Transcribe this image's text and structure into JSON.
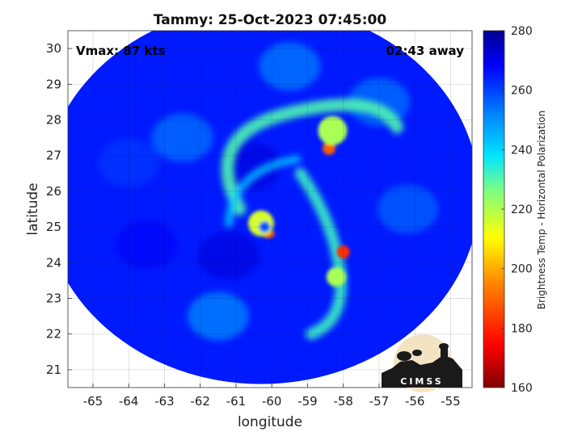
{
  "chart_data": {
    "type": "heatmap",
    "title": "Tammy: 25-Oct-2023 07:45:00",
    "xlabel": "longitude",
    "ylabel": "latitude",
    "xlim": [
      -65.7,
      -54.4
    ],
    "ylim": [
      20.5,
      30.5
    ],
    "x_ticks": [
      -65,
      -64,
      -63,
      -62,
      -61,
      -60,
      -59,
      -58,
      -57,
      -56,
      -55
    ],
    "y_ticks": [
      21,
      22,
      23,
      24,
      25,
      26,
      27,
      28,
      29,
      30
    ],
    "grid": true,
    "annotations": {
      "vmax": "Vmax: 87 kts",
      "time_away": "02:43 away"
    },
    "colorbar": {
      "label": "Brightness Temp - Horizontal Polarization",
      "range": [
        160,
        280
      ],
      "ticks": [
        160,
        180,
        200,
        220,
        240,
        260,
        280
      ],
      "colormap": [
        "#7f0000",
        "#ff0000",
        "#ff8c00",
        "#ffff00",
        "#7fff7f",
        "#00e5ff",
        "#0080ff",
        "#0000ff",
        "#00008f"
      ]
    },
    "swath": {
      "center": [
        -60.3,
        25.9
      ],
      "radius_deg_lon": 6.1,
      "radius_deg_lat": 5.3,
      "background_temp": 262
    },
    "features": [
      {
        "name": "eye",
        "lon": -60.2,
        "lat": 25.0,
        "temp": 255
      },
      {
        "name": "eyewall-south",
        "lon": -60.1,
        "lat": 24.8,
        "temp": 185
      },
      {
        "name": "eyewall-ring",
        "lon": -60.3,
        "lat": 25.1,
        "temp": 210
      },
      {
        "name": "band-cell",
        "lon": -58.4,
        "lat": 27.2,
        "temp": 185
      },
      {
        "name": "band-north",
        "lon": -58.3,
        "lat": 27.7,
        "temp": 215
      },
      {
        "name": "band-cell-south",
        "lon": -58.0,
        "lat": 24.3,
        "temp": 180
      },
      {
        "name": "band-south",
        "lon": -58.2,
        "lat": 23.6,
        "temp": 215
      }
    ],
    "logo_text": "CIMSS"
  }
}
